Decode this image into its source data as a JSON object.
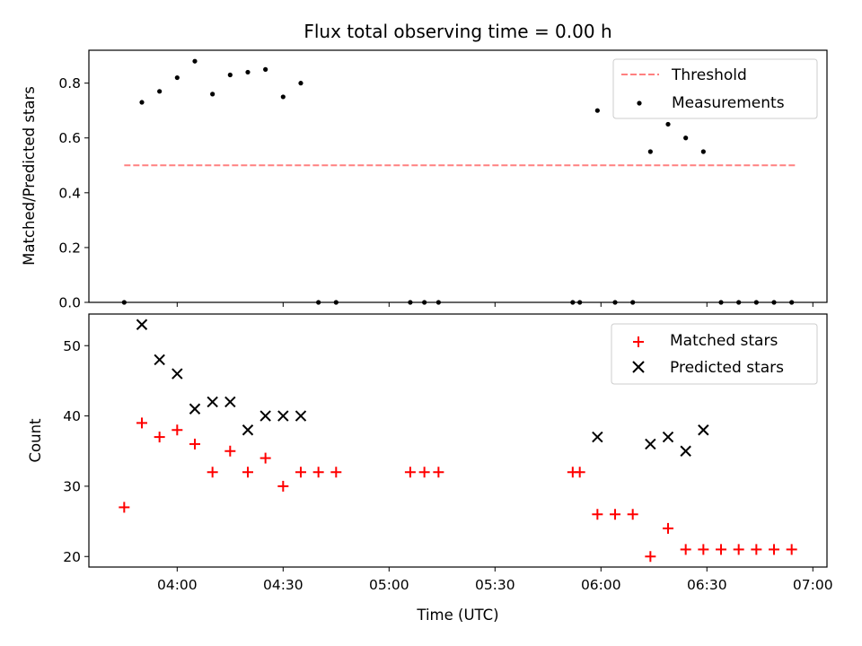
{
  "chart_data": [
    {
      "type": "scatter",
      "title": "Flux total observing time = 0.00 h",
      "xlabel": "",
      "ylabel": "Matched/Predicted stars",
      "xlim": [
        "03:35",
        "07:04"
      ],
      "ylim": [
        0,
        0.92
      ],
      "yticks": [
        "0.0",
        "0.2",
        "0.4",
        "0.6",
        "0.8"
      ],
      "ytick_values": [
        0,
        0.2,
        0.4,
        0.6,
        0.8
      ],
      "legend_position": "top-right",
      "series": [
        {
          "name": "Threshold",
          "kind": "dashed-line",
          "color": "#ff8080",
          "x": [
            "03:45",
            "06:55"
          ],
          "y": [
            0.5,
            0.5
          ]
        },
        {
          "name": "Measurements",
          "kind": "points",
          "color": "#000000",
          "x": [
            "03:45",
            "03:50",
            "03:55",
            "04:00",
            "04:05",
            "04:10",
            "04:15",
            "04:20",
            "04:25",
            "04:30",
            "04:35",
            "04:40",
            "04:45",
            "05:06",
            "05:10",
            "05:14",
            "05:52",
            "05:54",
            "05:59",
            "06:04",
            "06:09",
            "06:14",
            "06:19",
            "06:24",
            "06:29",
            "06:34",
            "06:39",
            "06:44",
            "06:49",
            "06:54"
          ],
          "y": [
            0.0,
            0.73,
            0.77,
            0.82,
            0.88,
            0.76,
            0.83,
            0.84,
            0.85,
            0.75,
            0.8,
            0.0,
            0.0,
            0.0,
            0.0,
            0.0,
            0.0,
            0.0,
            0.7,
            0.0,
            0.0,
            0.55,
            0.65,
            0.6,
            0.55,
            0.0,
            0.0,
            0.0,
            0.0,
            0.0
          ]
        }
      ]
    },
    {
      "type": "scatter",
      "title": "",
      "xlabel": "Time (UTC)",
      "ylabel": "Count",
      "xlim": [
        "03:35",
        "07:04"
      ],
      "ylim": [
        18.5,
        54.5
      ],
      "xticks": [
        "04:00",
        "04:30",
        "05:00",
        "05:30",
        "06:00",
        "06:30",
        "07:00"
      ],
      "yticks": [
        "20",
        "30",
        "40",
        "50"
      ],
      "ytick_values": [
        20,
        30,
        40,
        50
      ],
      "legend_position": "top-right",
      "series": [
        {
          "name": "Matched stars",
          "kind": "plus",
          "color": "#ff0000",
          "x": [
            "03:45",
            "03:50",
            "03:55",
            "04:00",
            "04:05",
            "04:10",
            "04:15",
            "04:20",
            "04:25",
            "04:30",
            "04:35",
            "04:40",
            "04:45",
            "05:06",
            "05:10",
            "05:14",
            "05:52",
            "05:54",
            "05:59",
            "06:04",
            "06:09",
            "06:14",
            "06:19",
            "06:24",
            "06:29",
            "06:34",
            "06:39",
            "06:44",
            "06:49",
            "06:54"
          ],
          "y": [
            27,
            39,
            37,
            38,
            36,
            32,
            35,
            32,
            34,
            30,
            32,
            32,
            32,
            32,
            32,
            32,
            32,
            32,
            26,
            26,
            26,
            20,
            24,
            21,
            21,
            21,
            21,
            21,
            21,
            21
          ]
        },
        {
          "name": "Predicted stars",
          "kind": "x",
          "color": "#000000",
          "x": [
            "03:50",
            "03:55",
            "04:00",
            "04:05",
            "04:10",
            "04:15",
            "04:20",
            "04:25",
            "04:30",
            "04:35",
            "05:59",
            "06:14",
            "06:19",
            "06:24",
            "06:29"
          ],
          "y": [
            53,
            48,
            46,
            41,
            42,
            42,
            38,
            40,
            40,
            40,
            37,
            36,
            37,
            35,
            38
          ]
        }
      ]
    }
  ]
}
